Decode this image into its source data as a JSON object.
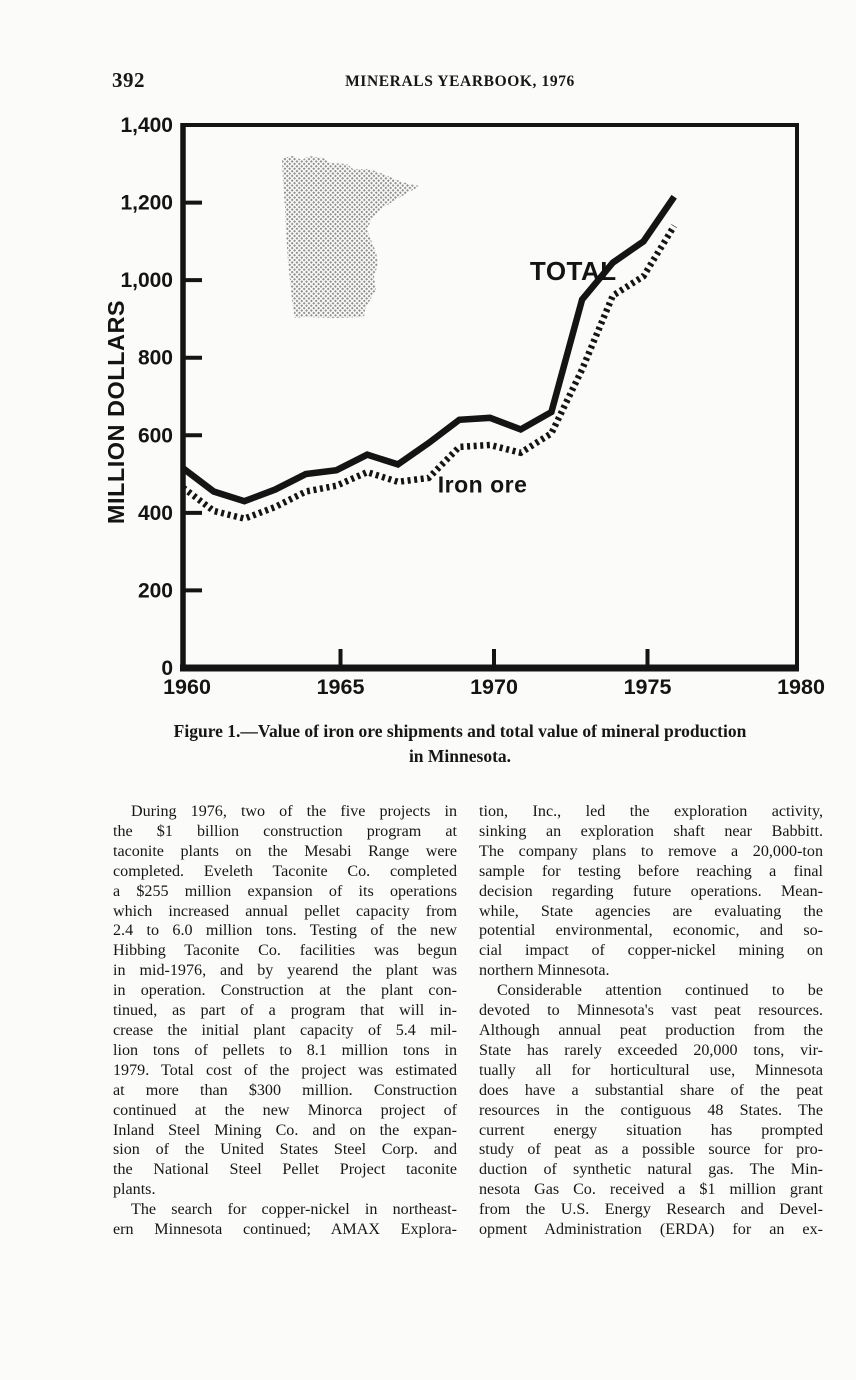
{
  "page": {
    "number": "392",
    "running_title": "MINERALS YEARBOOK, 1976"
  },
  "figure": {
    "caption_line1": "Figure 1.—Value of iron ore shipments and total value of mineral production",
    "caption_line2": "in Minnesota."
  },
  "chart_data": {
    "type": "line",
    "title": "",
    "xlabel": "",
    "ylabel": "MILLION DOLLARS",
    "xlim": [
      1960,
      1980
    ],
    "ylim": [
      0,
      1400
    ],
    "grid": false,
    "legend_position": "inline-annotations",
    "x_ticks": [
      1960,
      1965,
      1970,
      1975,
      1980
    ],
    "x_minor_ticks": [
      1965,
      1970,
      1975
    ],
    "y_ticks": [
      0,
      200,
      400,
      600,
      800,
      1000,
      1200,
      1400
    ],
    "y_tick_labels": [
      "0",
      "200",
      "400",
      "600",
      "800",
      "1,000",
      "1,200",
      "1,400"
    ],
    "x": [
      1960,
      1961,
      1962,
      1963,
      1964,
      1965,
      1966,
      1967,
      1968,
      1969,
      1970,
      1971,
      1972,
      1973,
      1974,
      1975,
      1976
    ],
    "series": [
      {
        "name": "TOTAL",
        "style": "solid",
        "values": [
          515,
          455,
          430,
          460,
          500,
          510,
          550,
          525,
          580,
          640,
          645,
          615,
          660,
          950,
          1045,
          1100,
          1215
        ]
      },
      {
        "name": "Iron ore",
        "style": "dashed",
        "values": [
          465,
          405,
          385,
          415,
          455,
          470,
          505,
          480,
          490,
          570,
          575,
          555,
          605,
          770,
          960,
          1010,
          1140
        ]
      }
    ],
    "annotations": [
      {
        "text": "TOTAL",
        "x": 1971.3,
        "y": 1000,
        "font_px": 26
      },
      {
        "text": "Iron ore",
        "x": 1968.3,
        "y": 452,
        "font_px": 23
      }
    ],
    "inset": "minnesota-state-silhouette"
  },
  "columns": {
    "left": {
      "paragraphs": [
        {
          "indent_first": true,
          "justify_last": false,
          "lines": [
            "During 1976, two of the five projects in",
            "the $1 billion construction program at",
            "taconite plants on the Mesabi Range were",
            "completed. Eveleth Taconite Co. completed",
            "a $255 million expansion of its operations",
            "which increased annual pellet capacity from",
            "2.4 to 6.0 million tons. Testing of the new",
            "Hibbing Taconite Co. facilities was begun",
            "in mid-1976, and by yearend the plant was",
            "in operation. Construction at the plant con-",
            "tinued, as part of a program that will in-",
            "crease the initial plant capacity of 5.4 mil-",
            "lion tons of pellets to 8.1 million tons in",
            "1979. Total cost of the project was estimated",
            "at more than $300 million. Construction",
            "continued at the new Minorca project of",
            "Inland Steel Mining Co. and on the expan-",
            "sion of the United States Steel Corp. and",
            "the National Steel Pellet Project taconite",
            "plants."
          ]
        },
        {
          "indent_first": true,
          "justify_last": true,
          "lines": [
            "The search for copper-nickel in northeast-",
            "ern Minnesota continued; AMAX Explora-"
          ]
        }
      ]
    },
    "right": {
      "paragraphs": [
        {
          "indent_first": false,
          "justify_last": false,
          "lines": [
            "tion, Inc., led the exploration activity,",
            "sinking an exploration shaft near Babbitt.",
            "The company plans to remove a 20,000-ton",
            "sample for testing before reaching a final",
            "decision regarding future operations. Mean-",
            "while, State agencies are evaluating the",
            "potential environmental, economic, and so-",
            "cial impact of copper-nickel mining on",
            "northern Minnesota."
          ]
        },
        {
          "indent_first": true,
          "justify_last": true,
          "lines": [
            "Considerable attention continued to be",
            "devoted to Minnesota's vast peat resources.",
            "Although annual peat production from the",
            "State has rarely exceeded 20,000 tons, vir-",
            "tually all for horticultural use, Minnesota",
            "does have a substantial share of the peat",
            "resources in the contiguous 48 States. The",
            "current energy situation has prompted",
            "study of peat as a possible source for pro-",
            "duction of synthetic natural gas. The Min-",
            "nesota Gas Co. received a $1 million grant",
            "from the U.S. Energy Research and Devel-",
            "opment Administration (ERDA) for an ex-"
          ]
        }
      ]
    }
  },
  "colors": {
    "ink": "#141414",
    "paper": "#fbfbf9",
    "halftone_gray": "#8f8f8f"
  }
}
